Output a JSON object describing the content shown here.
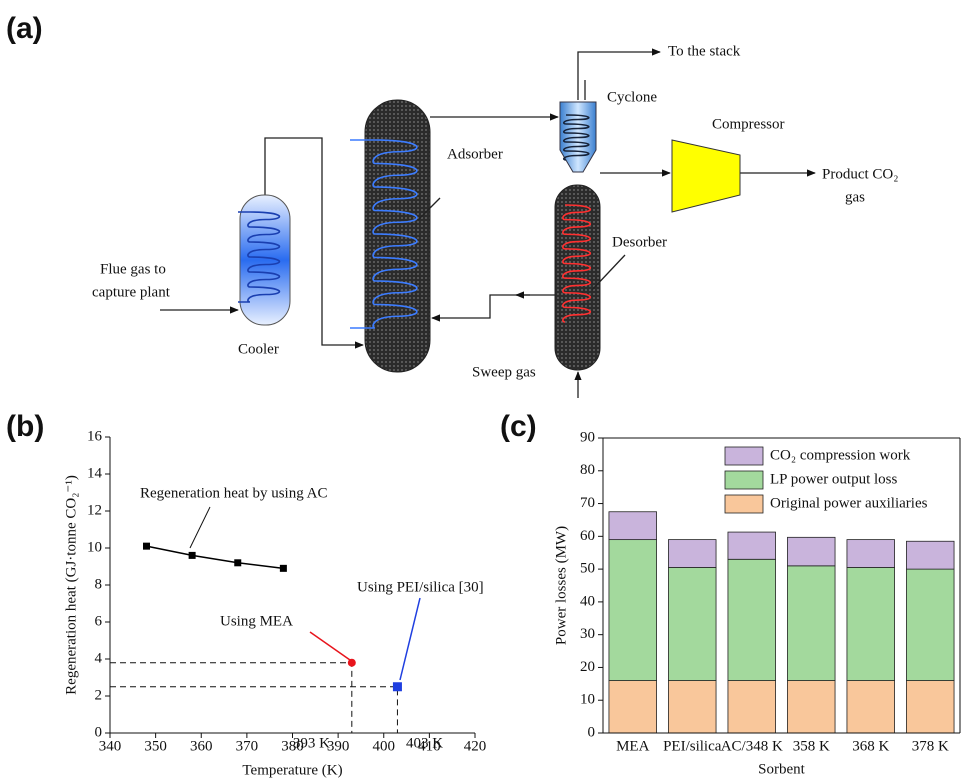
{
  "panel_labels": [
    "(a)",
    "(b)",
    "(c)"
  ],
  "diagram": {
    "to_stack": "To the stack",
    "cyclone": "Cyclone",
    "compressor": "Compressor",
    "adsorber": "Adsorber",
    "product": [
      "Product CO₂",
      "gas"
    ],
    "desorber": "Desorber",
    "flue_gas": [
      "Flue gas to",
      "capture plant"
    ],
    "cooler": "Cooler",
    "sweep_gas": "Sweep gas"
  },
  "chart_data": [
    {
      "type": "line",
      "x_label": "Temperature (K)",
      "y_label": "Regeneration heat (GJ·tonne CO₂⁻¹)",
      "xlim": [
        340,
        420
      ],
      "xticks": [
        340,
        350,
        360,
        370,
        380,
        390,
        400,
        410,
        420
      ],
      "ylim": [
        0,
        16
      ],
      "yticks": [
        0,
        2,
        4,
        6,
        8,
        10,
        12,
        14,
        16
      ],
      "series": [
        {
          "x": [
            348,
            358,
            368,
            378
          ],
          "values": [
            10.1,
            9.6,
            9.2,
            8.9
          ],
          "color": "#000000",
          "marker": "square"
        },
        {
          "x": [
            393
          ],
          "values": [
            3.8
          ],
          "color": "#e8141c",
          "marker": "circle"
        },
        {
          "x": [
            403
          ],
          "values": [
            2.5
          ],
          "color": "#1f3fe0",
          "marker": "square"
        }
      ],
      "annotations": [
        "Regeneration heat by using AC",
        "Using MEA",
        "Using PEI/silica [30]",
        "393 K",
        "403 K"
      ]
    },
    {
      "type": "stacked_bar",
      "x_label": "Sorbent",
      "y_label": "Power losses (MW)",
      "categories": [
        "MEA",
        "PEI/silica",
        "AC/348 K",
        "358 K",
        "368 K",
        "378 K"
      ],
      "ylim": [
        0,
        90
      ],
      "yticks": [
        0,
        10,
        20,
        30,
        40,
        50,
        60,
        70,
        80,
        90
      ],
      "legend": "upper right",
      "series": [
        {
          "name": "Original power auxiliaries",
          "color": "#f9c79b",
          "values": [
            16,
            16,
            16,
            16,
            16,
            16
          ]
        },
        {
          "name": "LP power output loss",
          "color": "#a3d99d",
          "values": [
            43,
            34.5,
            37,
            35,
            34.5,
            34
          ]
        },
        {
          "name": "CO₂ compression work",
          "color": "#c9b4dc",
          "values": [
            8.5,
            8.5,
            8.3,
            8.7,
            8.5,
            8.5
          ]
        }
      ]
    }
  ]
}
